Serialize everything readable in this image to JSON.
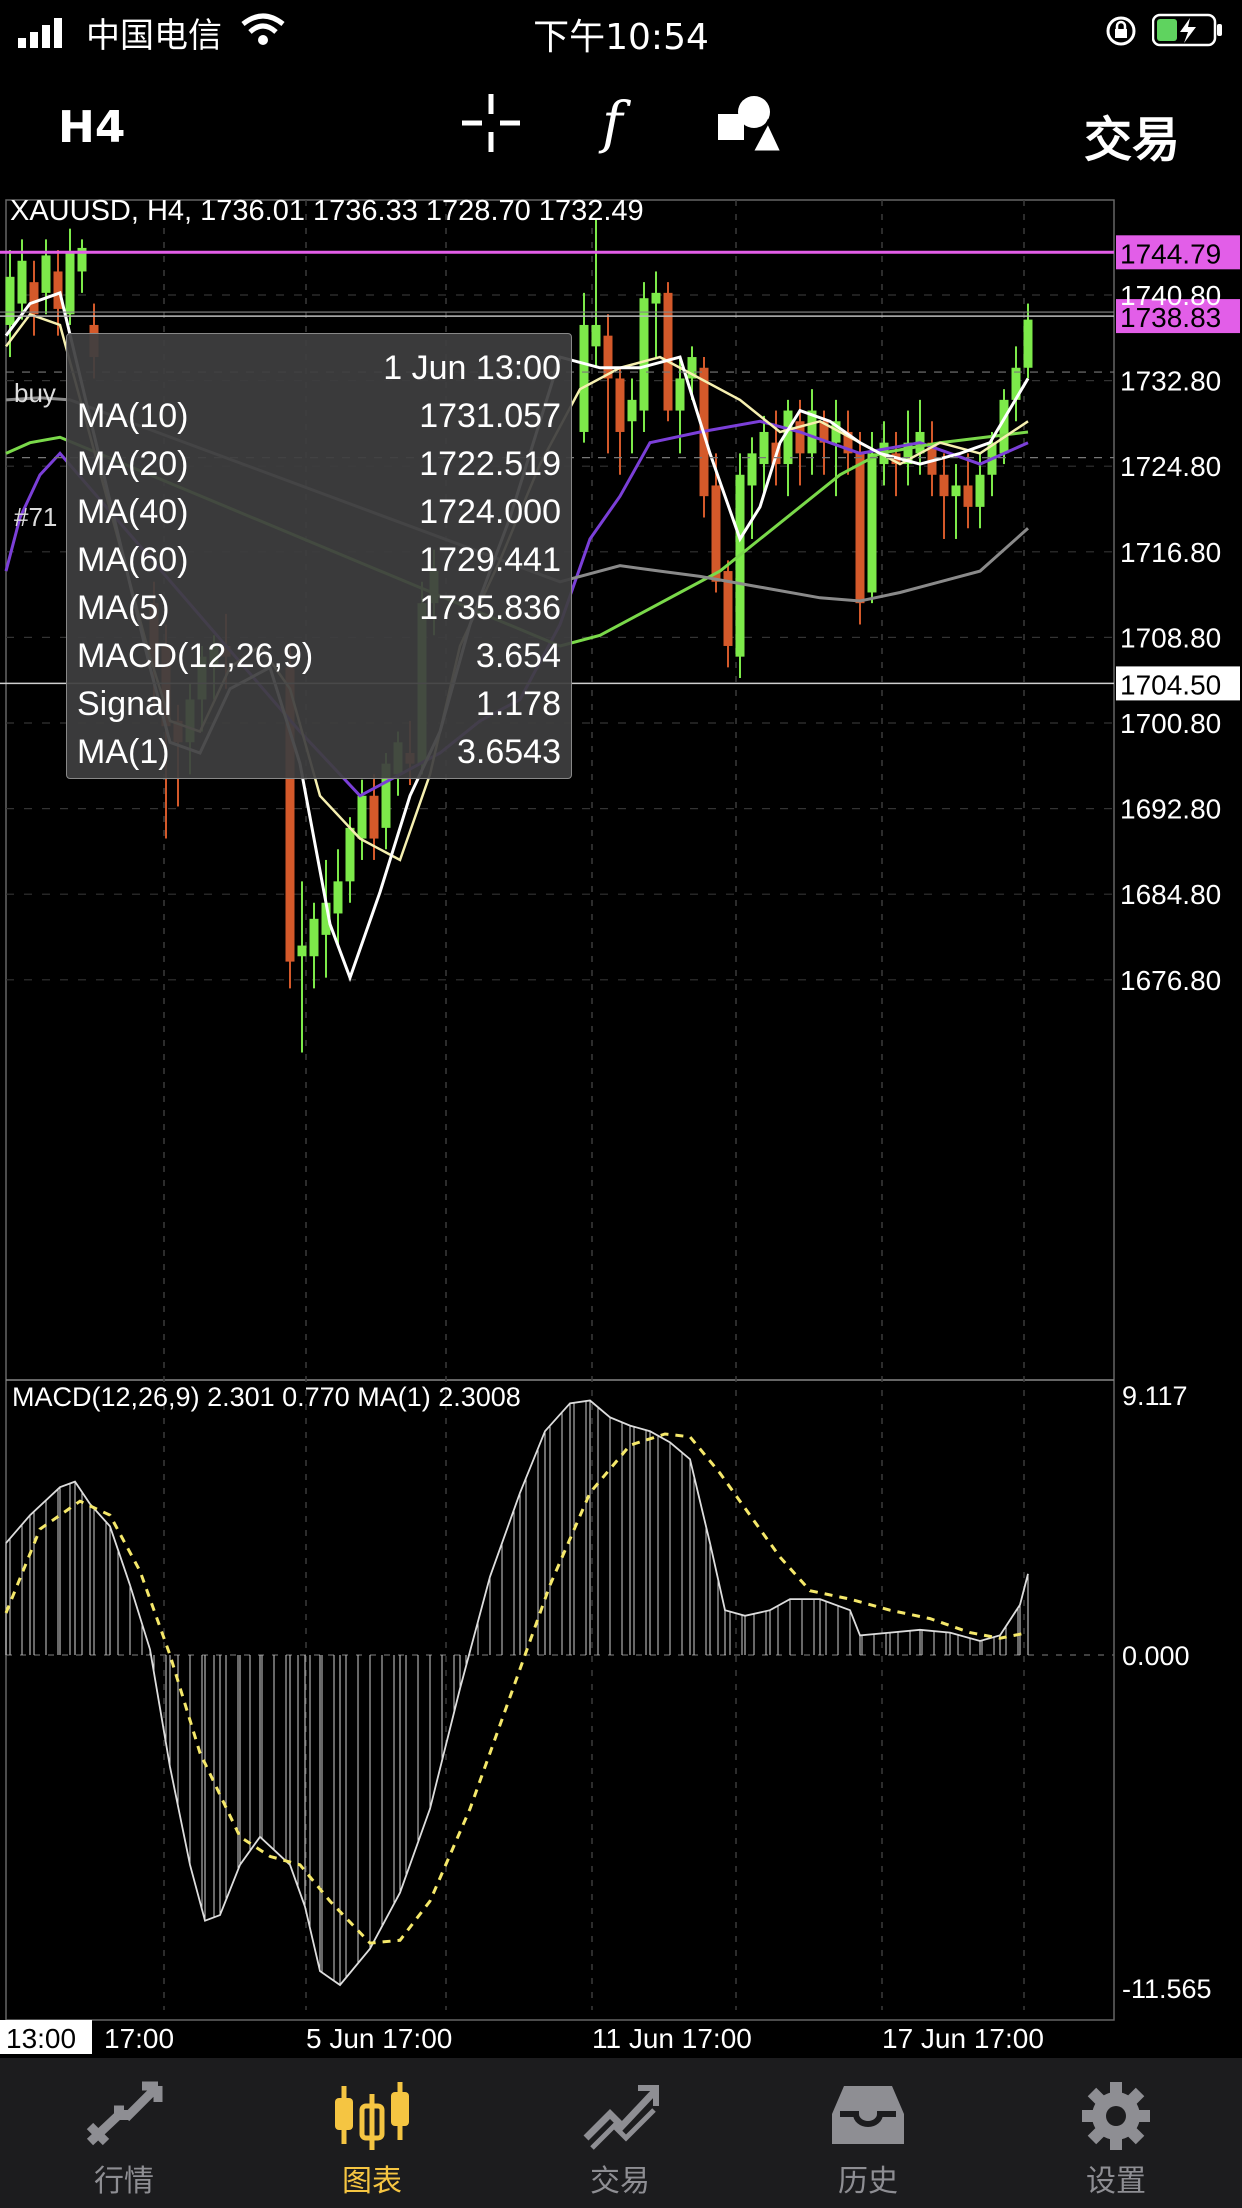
{
  "status_bar": {
    "carrier": "中国电信",
    "time": "下午10:54"
  },
  "toolbar": {
    "timeframe": "H4",
    "trade_label": "交易"
  },
  "chart": {
    "header": "XAUUSD, H4, 1736.01 1736.33 1728.70 1732.49",
    "price_labels": [
      "1740.80",
      "1732.80",
      "1724.80",
      "1716.80",
      "1708.80",
      "1700.80",
      "1692.80",
      "1684.80",
      "1676.80"
    ],
    "highlight_levels": [
      {
        "label": "1744.79",
        "bg": "#e25ee8"
      },
      {
        "label": "1738.83",
        "bg": "#e25ee8"
      },
      {
        "label": "1704.50",
        "bg": "#ffffff"
      }
    ],
    "order_labels": [
      "buy",
      "#71"
    ],
    "macd_header": "MACD(12,26,9) 2.301 0.770 MA(1) 2.3008",
    "macd_scale": [
      "9.117",
      "0.000",
      "-11.565"
    ],
    "time_labels": [
      "13:00",
      "17:00",
      "5 Jun 17:00",
      "11 Jun 17:00",
      "17 Jun 17:00"
    ],
    "colors": {
      "bull": "#7dea4a",
      "bear": "#d4592a",
      "ma_purple": "#7b3fd8",
      "ma_white": "#ffffff",
      "ma_cream": "#f6f0b0",
      "ma_gray": "#8a8a8a",
      "ma_green": "#7ad94a",
      "signal": "#f5e86a"
    }
  },
  "tooltip": {
    "time": "1 Jun 13:00",
    "rows": [
      {
        "name": "MA(10)",
        "value": "1731.057"
      },
      {
        "name": "MA(20)",
        "value": "1722.519"
      },
      {
        "name": "MA(40)",
        "value": "1724.000"
      },
      {
        "name": "MA(60)",
        "value": "1729.441"
      },
      {
        "name": "MA(5)",
        "value": "1735.836"
      },
      {
        "name": "MACD(12,26,9)",
        "value": "3.654"
      },
      {
        "name": "Signal",
        "value": "1.178"
      },
      {
        "name": "MA(1)",
        "value": "3.6543"
      }
    ]
  },
  "tabbar": {
    "items": [
      {
        "label": "行情",
        "icon": "quotes-icon"
      },
      {
        "label": "图表",
        "icon": "chart-candles-icon"
      },
      {
        "label": "交易",
        "icon": "trade-icon"
      },
      {
        "label": "历史",
        "icon": "history-icon"
      },
      {
        "label": "设置",
        "icon": "settings-gear-icon"
      }
    ],
    "active_index": 1
  }
}
